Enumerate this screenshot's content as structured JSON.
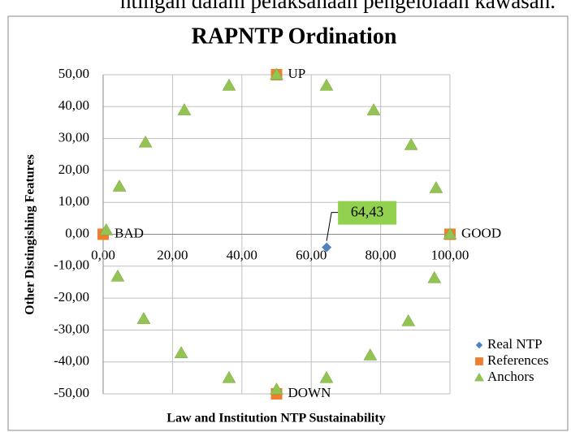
{
  "page_text": "ntingan dalam pelaksanaan pengelolaan kawasan.",
  "chart_data": {
    "type": "scatter",
    "title": "RAPNTP Ordination",
    "xlabel": "Law and Institution NTP Sustainability",
    "ylabel": "Other Distingishing Features",
    "xlim": [
      0,
      100
    ],
    "ylim": [
      -50,
      50
    ],
    "xticks": [
      {
        "value": 0,
        "label": "0,00"
      },
      {
        "value": 20,
        "label": "20,00"
      },
      {
        "value": 40,
        "label": "40,00"
      },
      {
        "value": 60,
        "label": "60,00"
      },
      {
        "value": 80,
        "label": "80,00"
      },
      {
        "value": 100,
        "label": "100,00"
      }
    ],
    "yticks": [
      {
        "value": -50,
        "label": "-50,00"
      },
      {
        "value": -40,
        "label": "-40,00"
      },
      {
        "value": -30,
        "label": "-30,00"
      },
      {
        "value": -20,
        "label": "-20,00"
      },
      {
        "value": -10,
        "label": "-10,00"
      },
      {
        "value": 0,
        "label": "0,00"
      },
      {
        "value": 10,
        "label": "10,00"
      },
      {
        "value": 20,
        "label": "20,00"
      },
      {
        "value": 30,
        "label": "30,00"
      },
      {
        "value": 40,
        "label": "40,00"
      },
      {
        "value": 50,
        "label": "50,00"
      }
    ],
    "grid": true,
    "legend": "lower right",
    "series": [
      {
        "name": "Real NTP",
        "color": "#4f81bd",
        "marker": "diamond",
        "x": [
          64.43
        ],
        "values": [
          -4.1
        ],
        "x_labels": [
          "64,43"
        ]
      },
      {
        "name": "References",
        "color": "#f07e2f",
        "marker": "square",
        "x": [
          100,
          0,
          50,
          50
        ],
        "values": [
          0,
          0,
          50,
          -50
        ],
        "point_labels": [
          "GOOD",
          "BAD",
          "UP",
          "DOWN"
        ]
      },
      {
        "name": "Anchors",
        "color": "#92c353",
        "marker": "triangle",
        "x": [
          0.9,
          4.7,
          12.2,
          23.4,
          36.3,
          50,
          64.4,
          78,
          88.8,
          96,
          100,
          95.5,
          88,
          77,
          64.4,
          50,
          36.3,
          22.5,
          11.7,
          4.2
        ],
        "values": [
          1.3,
          15,
          28.8,
          38.9,
          46.6,
          50,
          46.6,
          38.9,
          28,
          14.5,
          0,
          -13.7,
          -27.2,
          -37.9,
          -45,
          -48.6,
          -45,
          -37.2,
          -26.5,
          -13.2
        ]
      }
    ]
  }
}
